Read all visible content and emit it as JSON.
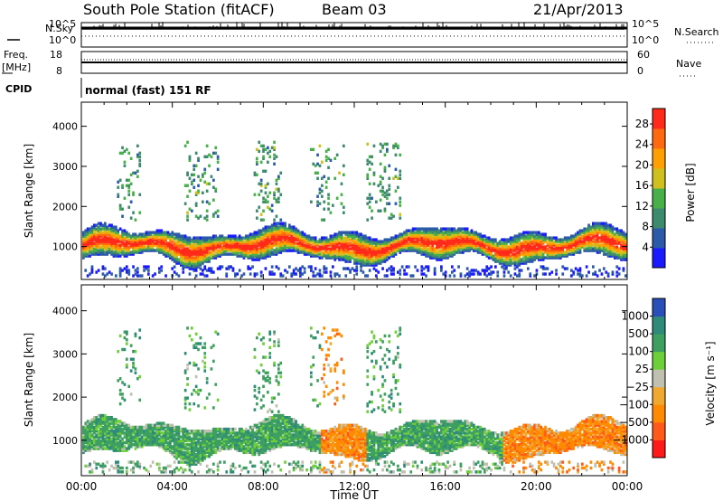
{
  "header": {
    "station": "South Pole Station (fitACF)",
    "beam": "Beam 03",
    "date": "21/Apr/2013"
  },
  "top_panels": {
    "nsky_label": "N.Sky",
    "nsearch_label": "N.Search",
    "noise_tick_high": "10^5",
    "noise_tick_low": "10^0",
    "freq_label": "Freq.",
    "freq_unit": "[MHz]",
    "freq_tick_high": "18",
    "freq_tick_low": "8",
    "nave_label": "Nave",
    "nave_tick_high": "60",
    "nave_tick_low": "0",
    "cpid_label": "CPID",
    "cpid_text": "normal (fast) 151 RF"
  },
  "chart_data": [
    {
      "type": "heatmap",
      "panel": "power",
      "ylabel": "Slant Range [km]",
      "xlabel": "",
      "x_ticks": [
        "00:00",
        "04:00",
        "08:00",
        "12:00",
        "16:00",
        "20:00",
        "00:00"
      ],
      "xlim_hours": [
        0,
        24
      ],
      "y_ticks": [
        1000,
        2000,
        3000,
        4000
      ],
      "ylim": [
        180,
        4600
      ],
      "colorbar": {
        "label": "Power [dB]",
        "ticks": [
          4,
          8,
          12,
          16,
          20,
          24,
          28
        ],
        "range": [
          0,
          31
        ],
        "colors": [
          "#1a1aff",
          "#2a5aa8",
          "#3e8a6e",
          "#48b048",
          "#cfc020",
          "#ffa000",
          "#ff6a10",
          "#ff2a1a"
        ]
      },
      "echo_bands": [
        {
          "range_km": [
            600,
            1500
          ],
          "level": "strong",
          "dominant": "28+ dB"
        },
        {
          "range_km": [
            1600,
            3600
          ],
          "level": "patchy",
          "dominant": "4-12 dB"
        }
      ]
    },
    {
      "type": "heatmap",
      "panel": "velocity",
      "ylabel": "Slant Range [km]",
      "xlabel": "Time UT",
      "x_ticks": [
        "00:00",
        "04:00",
        "08:00",
        "12:00",
        "16:00",
        "20:00",
        "00:00"
      ],
      "xlim_hours": [
        0,
        24
      ],
      "y_ticks": [
        1000,
        2000,
        3000,
        4000
      ],
      "ylim": [
        180,
        4600
      ],
      "colorbar": {
        "label": "Velocity [m s⁻¹]",
        "ticks": [
          "1000",
          "500",
          "100",
          "25",
          "−25",
          "−100",
          "−500",
          "−1000"
        ],
        "colors": [
          "#2b4fb8",
          "#2f8a7a",
          "#3ea060",
          "#6fcf3a",
          "#c0c0b0",
          "#f0a830",
          "#ff8a00",
          "#ff5a1a",
          "#ff1a1a"
        ]
      }
    }
  ]
}
